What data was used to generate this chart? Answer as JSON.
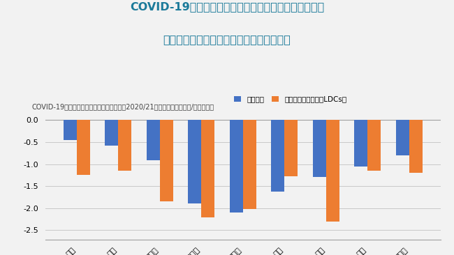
{
  "title_main_line1": "COVID-19により、より付加価値の高い食料消費量が減",
  "title_main_line2": "少する見込み。特に低開発途上国で顕著。",
  "subtitle": "COVID-19が世界食料消費量に与える影響（2020/21年度：シナリオ予測/趨勢予測）",
  "categories": [
    "小麦",
    "コメ",
    "植物油",
    "生鮮乳製品",
    "チーズ",
    "鶏肉",
    "豚肉",
    "牛肉",
    "魚介類"
  ],
  "world_values": [
    -0.45,
    -0.58,
    -0.92,
    -1.9,
    -2.1,
    -1.62,
    -1.3,
    -1.05,
    -0.8
  ],
  "ldcs_values": [
    -1.25,
    -1.15,
    -1.85,
    -2.22,
    -2.02,
    -1.27,
    -2.3,
    -1.15,
    -1.2
  ],
  "world_color": "#4472C4",
  "ldcs_color": "#ED7D31",
  "legend_world": "世界合計",
  "legend_ldcs": "うち低開発途上国（LDCs）",
  "ylabel": "（%）",
  "ylim_min": -2.72,
  "ylim_max": 0.18,
  "yticks": [
    0.0,
    -0.5,
    -1.0,
    -1.5,
    -2.0,
    -2.5
  ],
  "ytick_labels": [
    "0.0",
    "-0.5",
    "-1.0",
    "-1.5",
    "-2.0",
    "-2.5"
  ],
  "title_color": "#1B7A9A",
  "subtitle_color": "#404040",
  "background_color": "#F2F2F2",
  "bar_width": 0.32
}
